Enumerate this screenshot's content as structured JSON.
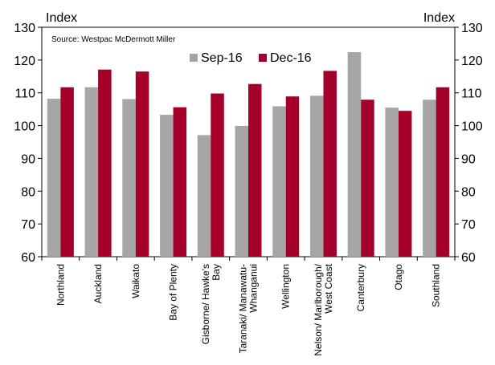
{
  "chart_data": {
    "type": "bar",
    "source_note": "Source: Westpac McDermott Miller",
    "y_left_label": "Index",
    "y_right_label": "Index",
    "ylim": [
      60,
      130
    ],
    "yticks": [
      60,
      70,
      80,
      90,
      100,
      110,
      120,
      130
    ],
    "categories": [
      [
        "Northland"
      ],
      [
        "Auckland"
      ],
      [
        "Waikato"
      ],
      [
        "Bay of Plenty"
      ],
      [
        "Gisborne/ Hawke's",
        "Bay"
      ],
      [
        "Taranaki/ Manawatu-",
        "Whanganui"
      ],
      [
        "Wellington"
      ],
      [
        "Nelson/ Marlborough/",
        "West Coast"
      ],
      [
        "Canterbury"
      ],
      [
        "Otago"
      ],
      [
        "Southland"
      ]
    ],
    "series": [
      {
        "name": "Sep-16",
        "color": "#a6a6a6",
        "values": [
          108.2,
          111.7,
          108.1,
          103.3,
          97.1,
          99.9,
          105.9,
          109.1,
          122.4,
          105.5,
          107.9
        ]
      },
      {
        "name": "Dec-16",
        "color": "#a5002a",
        "values": [
          111.7,
          117.1,
          116.5,
          105.6,
          109.8,
          112.7,
          108.9,
          116.7,
          107.9,
          104.5,
          111.7
        ]
      }
    ],
    "legend_position": "top-center",
    "grid": false
  }
}
